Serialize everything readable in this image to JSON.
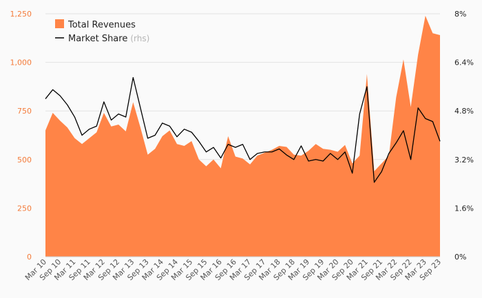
{
  "colors": {
    "revenue_fill": "#ff8447",
    "market_share_line": "#000000",
    "left_axis_text": "#f47b3a",
    "grid": "#e3e3e3"
  },
  "chart_data": {
    "type": "area",
    "x": [
      "Mar 10",
      "Jun 10",
      "Sep 10",
      "Dec 10",
      "Mar 11",
      "Jun 11",
      "Sep 11",
      "Dec 11",
      "Mar 12",
      "Jun 12",
      "Sep 12",
      "Dec 12",
      "Mar 13",
      "Jun 13",
      "Sep 13",
      "Dec 13",
      "Mar 14",
      "Jun 14",
      "Sep 14",
      "Dec 14",
      "Mar 15",
      "Jun 15",
      "Sep 15",
      "Dec 15",
      "Mar 16",
      "Jun 16",
      "Sep 16",
      "Dec 16",
      "Mar 17",
      "Jun 17",
      "Sep 17",
      "Dec 17",
      "Mar 18",
      "Jun 18",
      "Sep 18",
      "Dec 18",
      "Mar 19",
      "Jun 19",
      "Sep 19",
      "Dec 19",
      "Mar 20",
      "Jun 20",
      "Sep 20",
      "Dec 20",
      "Mar 21",
      "Jun 21",
      "Sep 21",
      "Dec 21",
      "Mar 22",
      "Jun 22",
      "Sep 22",
      "Dec 22",
      "Mar 23",
      "Jun 23",
      "Sep 23"
    ],
    "x_tick_labels": [
      "Mar 10",
      "Sep 10",
      "Mar 11",
      "Sep 11",
      "Mar 12",
      "Sep 12",
      "Mar 13",
      "Sep 13",
      "Mar 14",
      "Sep 14",
      "Mar 15",
      "Sep 15",
      "Mar 16",
      "Sep 16",
      "Mar 17",
      "Sep 17",
      "Mar 18",
      "Sep 18",
      "Mar 19",
      "Sep 19",
      "Mar 20",
      "Sep 20",
      "Mar 21",
      "Sep 21",
      "Mar 22",
      "Sep 22",
      "Mar 23",
      "Sep 23"
    ],
    "series": [
      {
        "name": "Total Revenues",
        "axis": "left",
        "type": "area",
        "values": [
          650,
          740,
          700,
          665,
          610,
          580,
          610,
          640,
          740,
          670,
          680,
          645,
          795,
          665,
          525,
          555,
          620,
          650,
          580,
          570,
          595,
          500,
          465,
          500,
          455,
          620,
          515,
          505,
          475,
          520,
          535,
          550,
          570,
          565,
          525,
          520,
          545,
          580,
          555,
          550,
          540,
          575,
          480,
          520,
          940,
          440,
          480,
          520,
          820,
          1015,
          770,
          1040,
          1240,
          1150,
          1140
        ]
      },
      {
        "name": "Market Share",
        "name_suffix": "(rhs)",
        "axis": "right",
        "type": "line",
        "values": [
          5.2,
          5.5,
          5.3,
          5.0,
          4.6,
          4.0,
          4.2,
          4.3,
          5.1,
          4.5,
          4.7,
          4.6,
          5.9,
          4.9,
          3.9,
          4.0,
          4.4,
          4.3,
          3.95,
          4.2,
          4.1,
          3.8,
          3.45,
          3.6,
          3.25,
          3.7,
          3.6,
          3.7,
          3.2,
          3.4,
          3.45,
          3.45,
          3.55,
          3.35,
          3.2,
          3.65,
          3.15,
          3.2,
          3.15,
          3.4,
          3.2,
          3.45,
          2.75,
          4.7,
          5.6,
          2.45,
          2.8,
          3.4,
          3.75,
          4.15,
          3.2,
          4.9,
          4.55,
          4.45,
          3.8
        ]
      }
    ],
    "ylim_left": [
      0,
      1250
    ],
    "yticks_left": [
      0,
      250,
      500,
      750,
      1000,
      1250
    ],
    "ytick_labels_left": [
      "0",
      "250",
      "500",
      "750",
      "1,000",
      "1,250"
    ],
    "ylim_right": [
      0,
      8
    ],
    "yticks_right": [
      0,
      1.6,
      3.2,
      4.8,
      6.4,
      8
    ],
    "ytick_labels_right": [
      "0%",
      "1.6%",
      "3.2%",
      "4.8%",
      "6.4%",
      "8%"
    ],
    "grid": true,
    "legend_position": "top-left"
  }
}
